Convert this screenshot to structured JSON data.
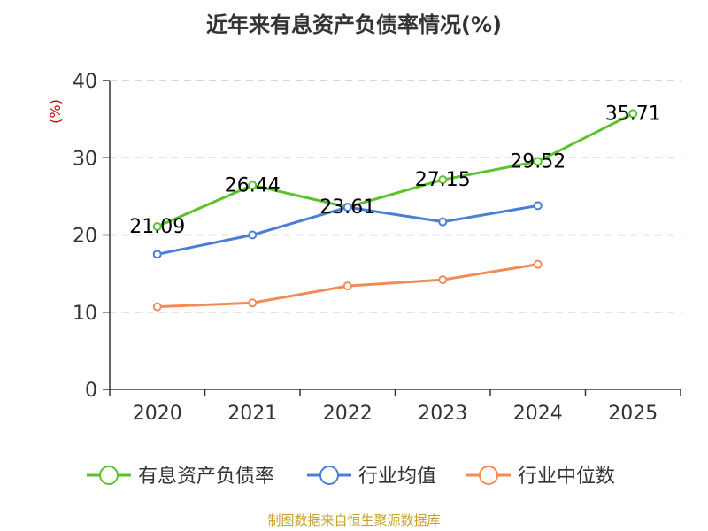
{
  "title": "近年来有息资产负债率情况(%)",
  "source": "制图数据来自恒生聚源数据库",
  "chart_data": {
    "type": "line",
    "title": "近年来有息资产负债率情况(%)",
    "ylabel": "(%)",
    "xlabel": "",
    "ylim": [
      0,
      40
    ],
    "yticks": [
      0,
      10,
      20,
      30,
      40
    ],
    "categories": [
      "2020",
      "2021",
      "2022",
      "2023",
      "2024",
      "2025"
    ],
    "grid": "horizontal dashed",
    "legend_position": "bottom",
    "series": [
      {
        "name": "有息资产负债率",
        "color": "#5cc22e",
        "values": [
          21.09,
          26.44,
          23.61,
          27.15,
          29.52,
          35.71
        ],
        "labels": [
          "21.09",
          "26.44",
          "23.61",
          "27.15",
          "29.52",
          "35.71"
        ]
      },
      {
        "name": "行业均值",
        "color": "#4a7fd9",
        "values": [
          17.5,
          20.0,
          23.6,
          21.7,
          23.8,
          null
        ],
        "labels": []
      },
      {
        "name": "行业中位数",
        "color": "#f28c55",
        "values": [
          10.7,
          11.2,
          13.4,
          14.2,
          16.2,
          null
        ],
        "labels": []
      }
    ]
  }
}
